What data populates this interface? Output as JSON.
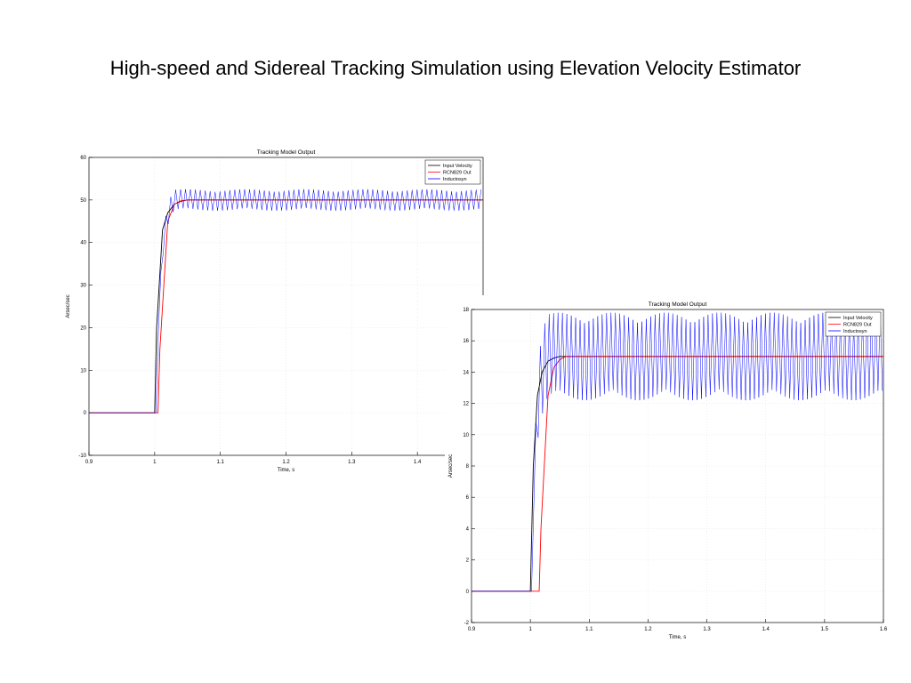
{
  "slide": {
    "title": "High-speed and Sidereal Tracking Simulation using Elevation Velocity Estimator"
  },
  "chart_data": [
    {
      "type": "line",
      "title": "Tracking Model Output",
      "xlabel": "Time, s",
      "ylabel": "Arsec/sec",
      "xlim": [
        0.9,
        1.5
      ],
      "ylim": [
        -10,
        60
      ],
      "x_ticks": [
        "0.9",
        "1",
        "1.1",
        "1.2",
        "1.3",
        "1.4"
      ],
      "y_ticks": [
        "-10",
        "0",
        "10",
        "20",
        "30",
        "40",
        "50",
        "60"
      ],
      "grid": true,
      "legend_position": "top-right",
      "series": [
        {
          "name": "Input Velocity",
          "color": "#000000",
          "x": [
            0.9,
            1.0,
            1.003,
            1.012,
            1.02,
            1.03,
            1.04,
            1.05,
            1.5
          ],
          "y": [
            0,
            0,
            20,
            43,
            47,
            49,
            49.7,
            50,
            50
          ]
        },
        {
          "name": "RCN829 Out",
          "color": "#ff0000",
          "x": [
            0.9,
            1.005,
            1.008,
            1.02,
            1.03,
            1.04,
            1.05,
            1.5
          ],
          "y": [
            0,
            0,
            15,
            45,
            49,
            49.8,
            50,
            50
          ]
        },
        {
          "name": "Inductosyn",
          "color": "#0000ff",
          "x_start": 0.9,
          "step_time": 1.002,
          "steady_value": 50,
          "ripple_amplitude": 2.5,
          "ripple_period": 0.0075
        }
      ]
    },
    {
      "type": "line",
      "title": "Tracking Model Output",
      "xlabel": "Time, s",
      "ylabel": "Arsec/sec",
      "xlim": [
        0.9,
        1.6
      ],
      "ylim": [
        -2,
        18
      ],
      "x_ticks": [
        "0.9",
        "1",
        "1.1",
        "1.2",
        "1.3",
        "1.4",
        "1.5",
        "1.6"
      ],
      "y_ticks": [
        "-2",
        "0",
        "2",
        "4",
        "6",
        "8",
        "10",
        "12",
        "14",
        "16",
        "18"
      ],
      "grid": true,
      "legend_position": "top-right",
      "series": [
        {
          "name": "Input Velocity",
          "color": "#000000",
          "x": [
            0.9,
            1.0,
            1.005,
            1.012,
            1.02,
            1.03,
            1.04,
            1.05,
            1.6
          ],
          "y": [
            0,
            0,
            8,
            12.5,
            14,
            14.7,
            14.9,
            15,
            15
          ]
        },
        {
          "name": "RCN829 Out",
          "color": "#ff0000",
          "x": [
            0.9,
            1.015,
            1.018,
            1.03,
            1.04,
            1.05,
            1.06,
            1.6
          ],
          "y": [
            0,
            0,
            4,
            12.5,
            14.3,
            14.8,
            15,
            15
          ]
        },
        {
          "name": "Inductosyn",
          "color": "#0000ff",
          "x_start": 0.9,
          "step_time": 1.002,
          "steady_value": 15,
          "ripple_amplitude": 2.8,
          "ripple_period": 0.0075
        }
      ]
    }
  ]
}
